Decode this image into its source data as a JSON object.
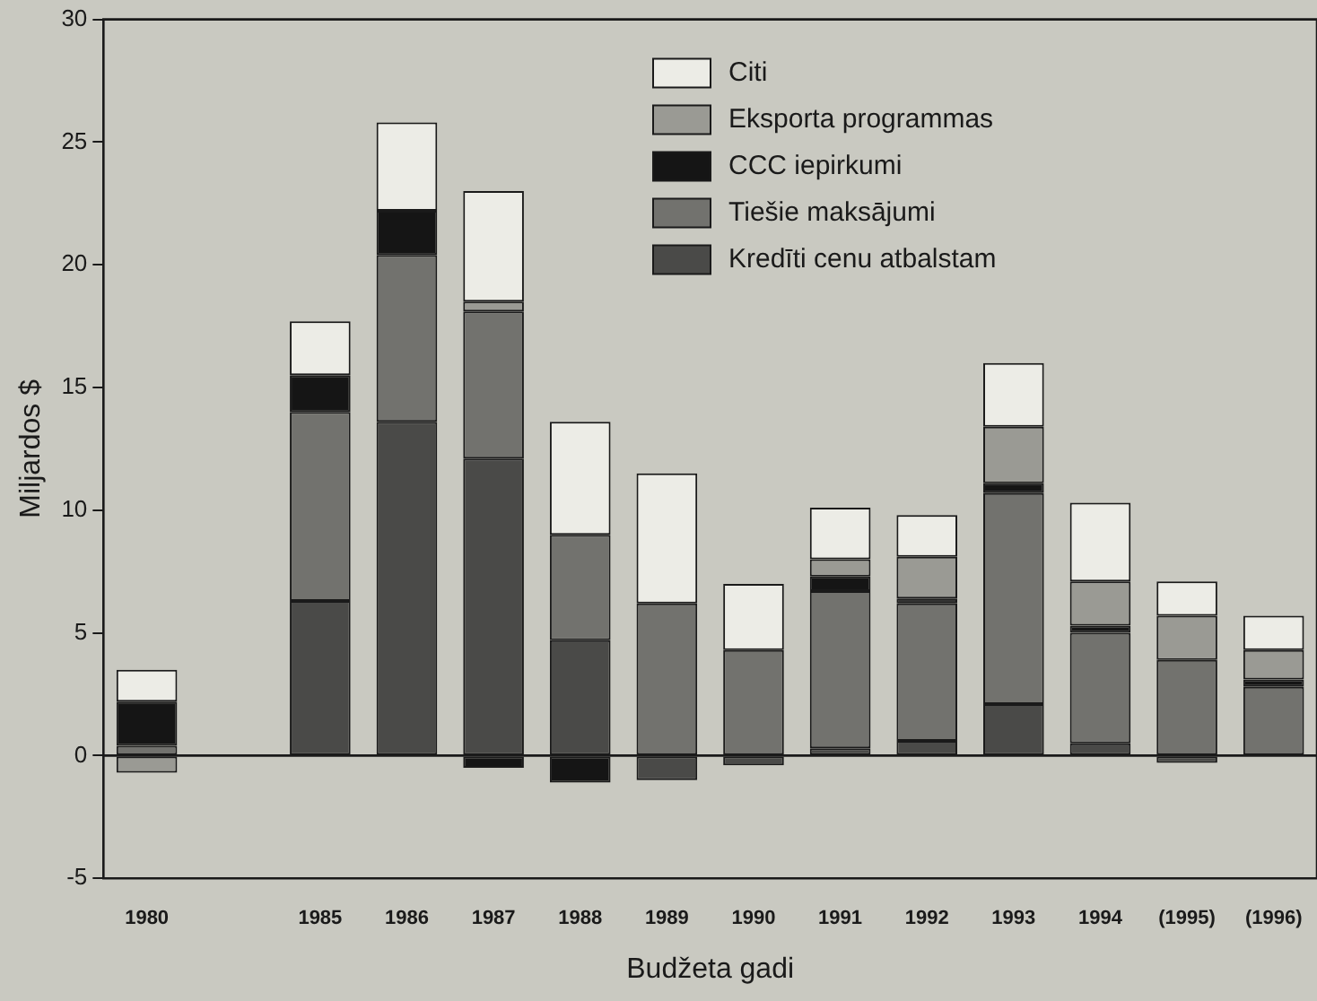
{
  "chart_data": {
    "type": "bar",
    "stacked": true,
    "xlabel": "Budžeta gadi",
    "ylabel": "Miljardos $",
    "categories": [
      "1980",
      null,
      "1985",
      "1986",
      "1987",
      "1988",
      "1989",
      "1990",
      "1991",
      "1992",
      "1993",
      "1994",
      "(1995)",
      "(1996)"
    ],
    "series": [
      {
        "name": "Kredīti cenu atbalstam",
        "color": "#4a4a48",
        "values": [
          0,
          null,
          6.3,
          13.6,
          12.1,
          4.7,
          -1.0,
          -0.4,
          0.3,
          0.6,
          2.1,
          0.5,
          -0.3,
          0
        ]
      },
      {
        "name": "Tiešie maksājumi",
        "color": "#72726e",
        "values": [
          0.4,
          null,
          7.7,
          6.8,
          6.0,
          4.3,
          6.2,
          4.3,
          6.4,
          5.6,
          8.6,
          4.5,
          3.9,
          2.8
        ]
      },
      {
        "name": "CCC iepirkumi",
        "color": "#151515",
        "values": [
          1.8,
          null,
          1.5,
          1.8,
          -0.5,
          -1.1,
          0,
          0,
          0.6,
          0.2,
          0.4,
          0.3,
          0,
          0.3
        ]
      },
      {
        "name": "Eksporta programmas",
        "color": "#9a9a94",
        "values": [
          -0.7,
          null,
          0,
          0,
          0.4,
          0,
          0,
          0,
          0.7,
          1.7,
          2.3,
          1.8,
          1.8,
          1.2
        ]
      },
      {
        "name": "Citi",
        "color": "#ecece6",
        "values": [
          1.3,
          null,
          2.2,
          3.6,
          4.5,
          4.6,
          5.3,
          2.7,
          2.1,
          1.7,
          2.6,
          3.2,
          1.4,
          1.4
        ]
      }
    ],
    "ylim": [
      -5,
      30
    ],
    "yticks": [
      -5,
      0,
      5,
      10,
      15,
      20,
      25,
      30
    ],
    "legend": "top right"
  }
}
